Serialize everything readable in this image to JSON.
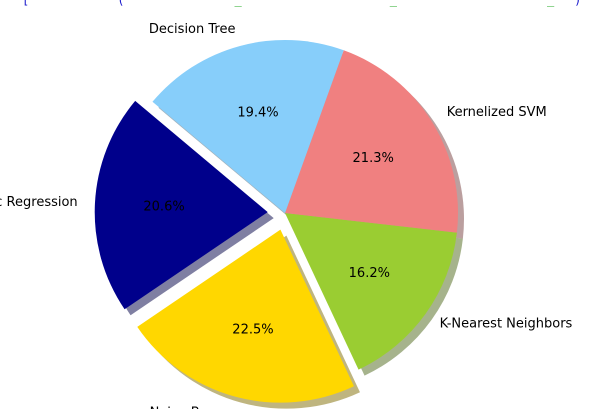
{
  "header_fragment": {
    "left": "[",
    "segments": [
      {
        "text": "(",
        "color": "#1a1acc"
      },
      {
        "text": "_",
        "color": "#1aa81a"
      },
      {
        "text": "_",
        "color": "#1aa81a"
      },
      {
        "text": "_",
        "color": "#1aa81a"
      },
      {
        "text": ")",
        "color": "#1a1acc"
      }
    ]
  },
  "chart_data": {
    "type": "pie",
    "title": "",
    "start_angle_deg": 140,
    "direction": "counterclockwise",
    "shadow": true,
    "slices": [
      {
        "label": "Logistic Regression",
        "value": 20.6,
        "pct_text": "20.6%",
        "color": "#00008b",
        "explode": 0.1
      },
      {
        "label": "Naive Bayes",
        "value": 22.5,
        "pct_text": "22.5%",
        "color": "#ffd700",
        "explode": 0.1
      },
      {
        "label": "K-Nearest Neighbors",
        "value": 16.2,
        "pct_text": "16.2%",
        "color": "#9acd32",
        "explode": 0
      },
      {
        "label": "Kernelized SVM",
        "value": 21.3,
        "pct_text": "21.3%",
        "color": "#f08080",
        "explode": 0
      },
      {
        "label": "Decision Tree",
        "value": 19.4,
        "pct_text": "19.4%",
        "color": "#87cefa",
        "explode": 0
      }
    ]
  }
}
